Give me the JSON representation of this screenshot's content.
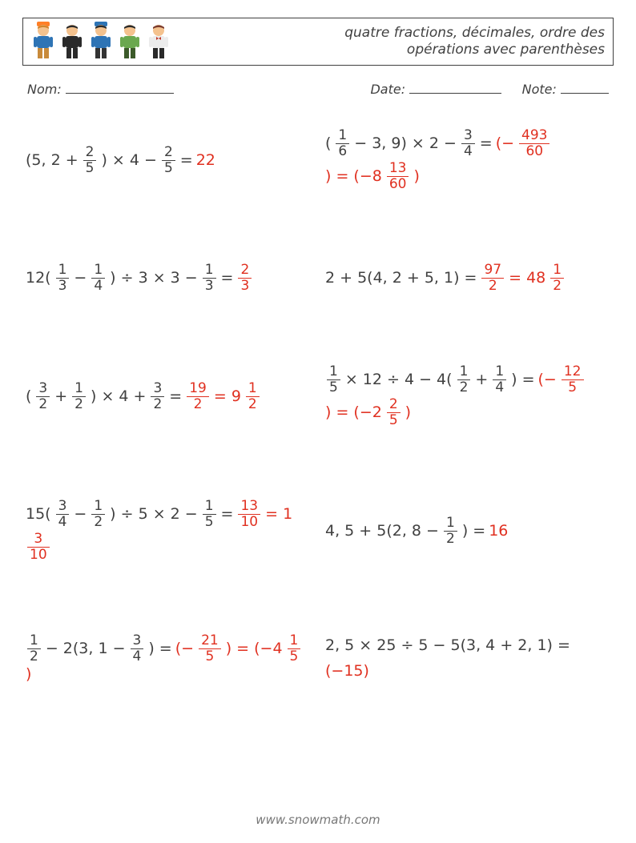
{
  "title_line1": "quatre fractions, décimales, ordre des",
  "title_line2": "opérations avec parenthèses",
  "labels": {
    "name": "Nom:",
    "date": "Date:",
    "note": "Note:"
  },
  "footer": "www.snowmath.com",
  "avatars": [
    {
      "hair": "#d0842b",
      "shirt": "#2e74b5",
      "pants": "#c88a3a",
      "hat": "#ff7f27"
    },
    {
      "hair": "#2a2a2a",
      "shirt": "#2a2a2a",
      "pants": "#2a2a2a",
      "hat": null
    },
    {
      "hair": "#2a2a2a",
      "shirt": "#2e74b5",
      "pants": "#333",
      "hat": "#2e74b5"
    },
    {
      "hair": "#2a2a2a",
      "shirt": "#6aa84f",
      "pants": "#3c5a2a",
      "hat": null
    },
    {
      "hair": "#7a3b2e",
      "shirt": "#ececec",
      "pants": "#2a2a2a",
      "hat": null,
      "bowtie": "#c0392b"
    }
  ],
  "answer_color": "#e03020",
  "problems": [
    {
      "tokens": [
        {
          "t": "txt",
          "v": "(5, 2 + "
        },
        {
          "t": "frac",
          "n": "2",
          "d": "5"
        },
        {
          "t": "txt",
          "v": ") × 4 − "
        },
        {
          "t": "frac",
          "n": "2",
          "d": "5"
        },
        {
          "t": "txt",
          "v": " = "
        },
        {
          "t": "txt",
          "v": "22",
          "red": true
        }
      ]
    },
    {
      "tokens": [
        {
          "t": "txt",
          "v": "("
        },
        {
          "t": "frac",
          "n": "1",
          "d": "6"
        },
        {
          "t": "txt",
          "v": " − 3, 9) × 2 − "
        },
        {
          "t": "frac",
          "n": "3",
          "d": "4"
        },
        {
          "t": "txt",
          "v": " = "
        },
        {
          "t": "txt",
          "v": "(−",
          "red": true
        },
        {
          "t": "frac",
          "n": "493",
          "d": "60",
          "red": true
        },
        {
          "t": "txt",
          "v": ") = (−8",
          "red": true
        },
        {
          "t": "frac",
          "n": "13",
          "d": "60",
          "red": true
        },
        {
          "t": "txt",
          "v": ")",
          "red": true
        }
      ]
    },
    {
      "tokens": [
        {
          "t": "txt",
          "v": "12("
        },
        {
          "t": "frac",
          "n": "1",
          "d": "3"
        },
        {
          "t": "txt",
          "v": " − "
        },
        {
          "t": "frac",
          "n": "1",
          "d": "4"
        },
        {
          "t": "txt",
          "v": ") ÷ 3 × 3 − "
        },
        {
          "t": "frac",
          "n": "1",
          "d": "3"
        },
        {
          "t": "txt",
          "v": " = "
        },
        {
          "t": "frac",
          "n": "2",
          "d": "3",
          "red": true
        }
      ]
    },
    {
      "tokens": [
        {
          "t": "txt",
          "v": "2 + 5(4, 2 + 5, 1) = "
        },
        {
          "t": "frac",
          "n": "97",
          "d": "2",
          "red": true
        },
        {
          "t": "txt",
          "v": " = 48",
          "red": true
        },
        {
          "t": "frac",
          "n": "1",
          "d": "2",
          "red": true
        }
      ]
    },
    {
      "tokens": [
        {
          "t": "txt",
          "v": "("
        },
        {
          "t": "frac",
          "n": "3",
          "d": "2"
        },
        {
          "t": "txt",
          "v": " + "
        },
        {
          "t": "frac",
          "n": "1",
          "d": "2"
        },
        {
          "t": "txt",
          "v": ") × 4 + "
        },
        {
          "t": "frac",
          "n": "3",
          "d": "2"
        },
        {
          "t": "txt",
          "v": " = "
        },
        {
          "t": "frac",
          "n": "19",
          "d": "2",
          "red": true
        },
        {
          "t": "txt",
          "v": " = 9",
          "red": true
        },
        {
          "t": "frac",
          "n": "1",
          "d": "2",
          "red": true
        }
      ]
    },
    {
      "tokens": [
        {
          "t": "frac",
          "n": "1",
          "d": "5"
        },
        {
          "t": "txt",
          "v": " × 12 ÷ 4 − 4("
        },
        {
          "t": "frac",
          "n": "1",
          "d": "2"
        },
        {
          "t": "txt",
          "v": " + "
        },
        {
          "t": "frac",
          "n": "1",
          "d": "4"
        },
        {
          "t": "txt",
          "v": ") = "
        },
        {
          "t": "txt",
          "v": "(−",
          "red": true
        },
        {
          "t": "frac",
          "n": "12",
          "d": "5",
          "red": true
        },
        {
          "t": "txt",
          "v": ") = (−2",
          "red": true
        },
        {
          "t": "frac",
          "n": "2",
          "d": "5",
          "red": true
        },
        {
          "t": "txt",
          "v": ")",
          "red": true
        }
      ]
    },
    {
      "tokens": [
        {
          "t": "txt",
          "v": "15("
        },
        {
          "t": "frac",
          "n": "3",
          "d": "4"
        },
        {
          "t": "txt",
          "v": " − "
        },
        {
          "t": "frac",
          "n": "1",
          "d": "2"
        },
        {
          "t": "txt",
          "v": ") ÷ 5 × 2 − "
        },
        {
          "t": "frac",
          "n": "1",
          "d": "5"
        },
        {
          "t": "txt",
          "v": " = "
        },
        {
          "t": "frac",
          "n": "13",
          "d": "10",
          "red": true
        },
        {
          "t": "txt",
          "v": " = 1",
          "red": true
        },
        {
          "t": "frac",
          "n": "3",
          "d": "10",
          "red": true
        }
      ]
    },
    {
      "tokens": [
        {
          "t": "txt",
          "v": "4, 5 + 5(2, 8 − "
        },
        {
          "t": "frac",
          "n": "1",
          "d": "2"
        },
        {
          "t": "txt",
          "v": ") = "
        },
        {
          "t": "txt",
          "v": "16",
          "red": true
        }
      ]
    },
    {
      "tokens": [
        {
          "t": "frac",
          "n": "1",
          "d": "2"
        },
        {
          "t": "txt",
          "v": " − 2(3, 1 − "
        },
        {
          "t": "frac",
          "n": "3",
          "d": "4"
        },
        {
          "t": "txt",
          "v": ") = "
        },
        {
          "t": "txt",
          "v": "(−",
          "red": true
        },
        {
          "t": "frac",
          "n": "21",
          "d": "5",
          "red": true
        },
        {
          "t": "txt",
          "v": ") = (−4",
          "red": true
        },
        {
          "t": "frac",
          "n": "1",
          "d": "5",
          "red": true
        },
        {
          "t": "txt",
          "v": ")",
          "red": true
        }
      ]
    },
    {
      "tokens": [
        {
          "t": "txt",
          "v": "2, 5 × 25 ÷ 5 − 5(3, 4 + 2, 1) = "
        },
        {
          "t": "txt",
          "v": "(−15)",
          "red": true
        }
      ]
    }
  ]
}
